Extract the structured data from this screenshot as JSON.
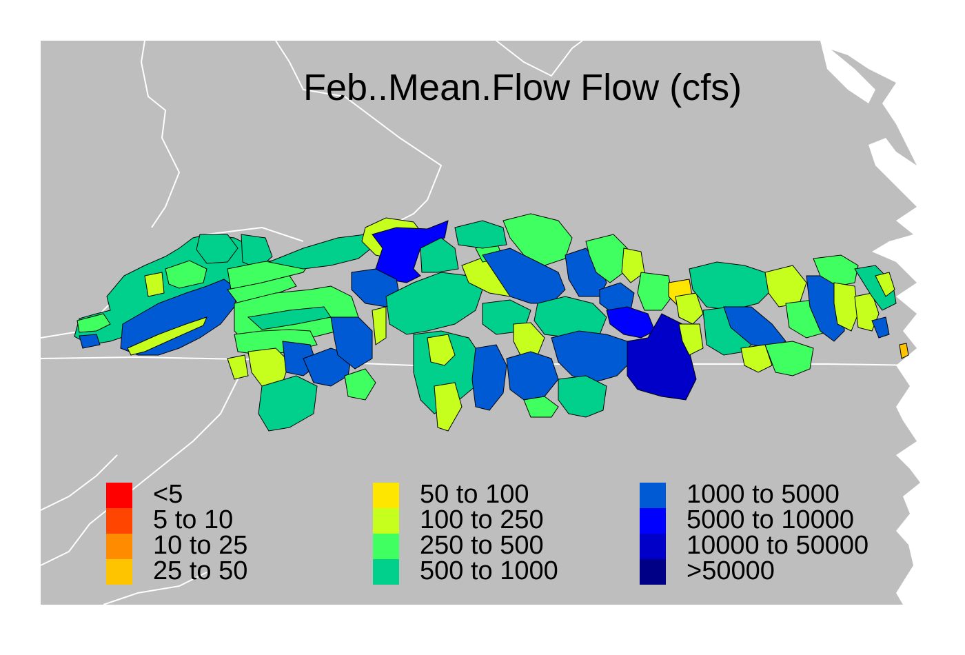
{
  "title": "Feb..Mean.Flow Flow (cfs)",
  "colors": {
    "background": "#ffffff",
    "land": "#bebebe",
    "water": "#ffffff",
    "boundary": "#ffffff",
    "polygon_outline": "#000000"
  },
  "legend": {
    "columns": [
      [
        {
          "label": "<5",
          "color": "#ff0000"
        },
        {
          "label": "5 to 10",
          "color": "#ff4500"
        },
        {
          "label": "10 to 25",
          "color": "#ff8c00"
        },
        {
          "label": "25 to 50",
          "color": "#ffc400"
        }
      ],
      [
        {
          "label": "50 to 100",
          "color": "#ffe600"
        },
        {
          "label": "100 to 250",
          "color": "#c6ff1e"
        },
        {
          "label": "250 to 500",
          "color": "#40ff60"
        },
        {
          "label": "500 to 1000",
          "color": "#00d08c"
        }
      ],
      [
        {
          "label": "1000 to 5000",
          "color": "#005ad4"
        },
        {
          "label": "5000 to 10000",
          "color": "#0000ff"
        },
        {
          "label": "10000 to 50000",
          "color": "#0000c8"
        },
        {
          "label": ">50000",
          "color": "#000087"
        }
      ]
    ]
  }
}
